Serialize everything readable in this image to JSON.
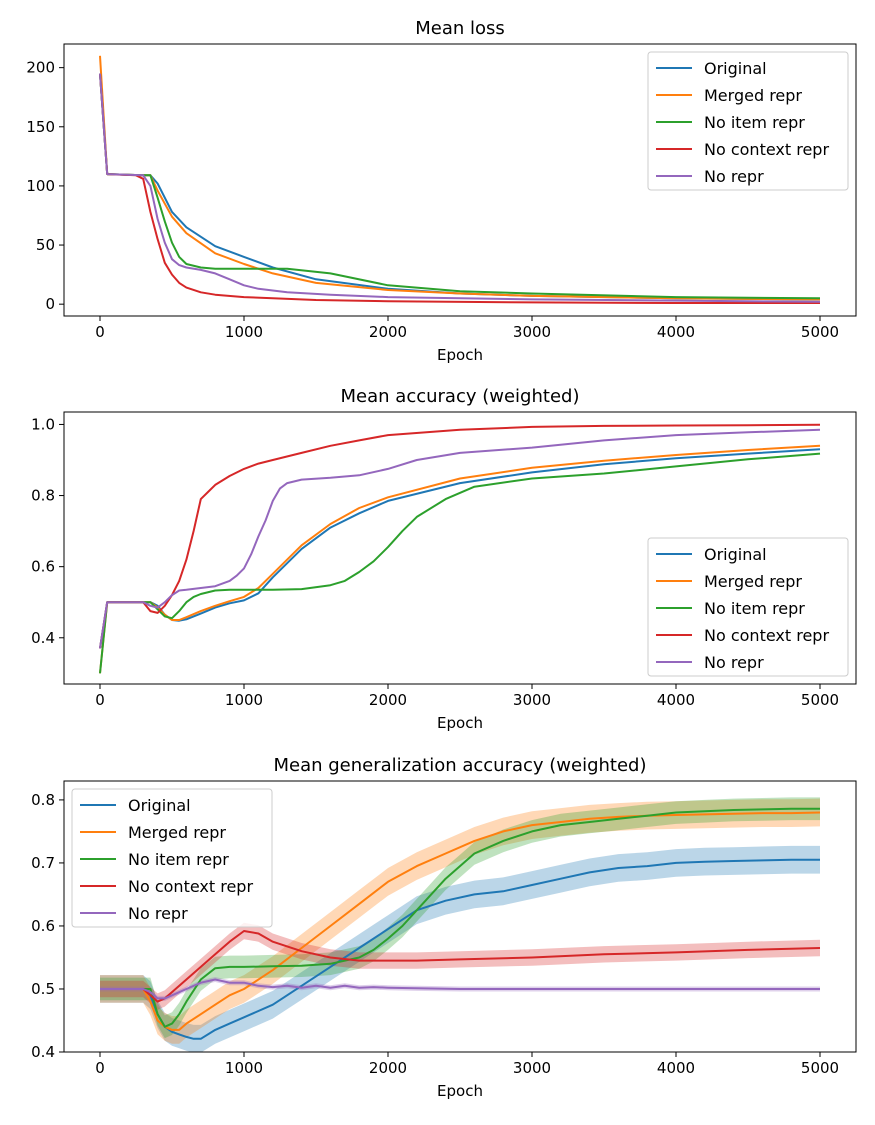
{
  "colors": {
    "Original": "#1f77b4",
    "Merged repr": "#ff7f0e",
    "No item repr": "#2ca02c",
    "No context repr": "#d62728",
    "No repr": "#9467bd"
  },
  "chart_data": [
    {
      "type": "line",
      "title": "Mean loss",
      "xlabel": "Epoch",
      "ylabel": "",
      "xlim": [
        -250,
        5250
      ],
      "ylim": [
        -10,
        220
      ],
      "xticks": [
        0,
        1000,
        2000,
        3000,
        4000,
        5000
      ],
      "yticks": [
        0,
        50,
        100,
        150,
        200
      ],
      "legend": "top-right",
      "grid": false,
      "series": [
        {
          "name": "Original",
          "x": [
            0,
            50,
            300,
            350,
            400,
            500,
            600,
            800,
            1000,
            1200,
            1500,
            2000,
            2500,
            3000,
            4000,
            5000
          ],
          "y": [
            195,
            110,
            109,
            109,
            102,
            78,
            65,
            49,
            40,
            31,
            21,
            13,
            9,
            7,
            5,
            4
          ]
        },
        {
          "name": "Merged repr",
          "x": [
            0,
            50,
            300,
            350,
            400,
            500,
            600,
            800,
            1000,
            1200,
            1500,
            2000,
            2500,
            3000,
            4000,
            5000
          ],
          "y": [
            210,
            110,
            109,
            109,
            96,
            74,
            60,
            43,
            34,
            26,
            18,
            12,
            9,
            7,
            5,
            4
          ]
        },
        {
          "name": "No item repr",
          "x": [
            0,
            50,
            300,
            350,
            400,
            450,
            500,
            550,
            600,
            700,
            800,
            1000,
            1300,
            1600,
            2000,
            2500,
            3000,
            4000,
            5000
          ],
          "y": [
            195,
            110,
            109,
            109,
            90,
            70,
            52,
            40,
            34,
            31,
            30,
            30,
            30,
            26,
            16,
            11,
            9,
            6,
            5
          ]
        },
        {
          "name": "No context repr",
          "x": [
            0,
            50,
            250,
            300,
            350,
            400,
            450,
            500,
            550,
            600,
            700,
            800,
            1000,
            1200,
            1500,
            2000,
            3000,
            4000,
            5000
          ],
          "y": [
            195,
            110,
            109,
            106,
            78,
            55,
            35,
            25,
            18,
            14,
            10,
            8,
            6,
            5,
            3.5,
            2.5,
            1.5,
            1,
            1
          ]
        },
        {
          "name": "No repr",
          "x": [
            0,
            50,
            300,
            350,
            400,
            450,
            500,
            550,
            600,
            700,
            800,
            900,
            1000,
            1100,
            1300,
            1600,
            2000,
            3000,
            4000,
            5000
          ],
          "y": [
            195,
            110,
            109,
            100,
            72,
            52,
            38,
            33,
            31,
            29,
            26,
            21,
            16,
            13,
            10,
            8,
            6,
            4,
            3,
            2
          ]
        }
      ]
    },
    {
      "type": "line",
      "title": "Mean accuracy (weighted)",
      "xlabel": "Epoch",
      "ylabel": "",
      "xlim": [
        -250,
        5250
      ],
      "ylim": [
        0.27,
        1.035
      ],
      "xticks": [
        0,
        1000,
        2000,
        3000,
        4000,
        5000
      ],
      "yticks": [
        0.4,
        0.6,
        0.8,
        1.0
      ],
      "ytick_labels": [
        "0.4",
        "0.6",
        "0.8",
        "1.0"
      ],
      "legend": "bottom-right",
      "grid": false,
      "series": [
        {
          "name": "Original",
          "x": [
            0,
            50,
            300,
            350,
            400,
            450,
            500,
            550,
            600,
            700,
            800,
            900,
            1000,
            1100,
            1200,
            1400,
            1600,
            1800,
            2000,
            2500,
            3000,
            3500,
            4000,
            4500,
            5000
          ],
          "y": [
            0.37,
            0.5,
            0.5,
            0.5,
            0.49,
            0.465,
            0.45,
            0.448,
            0.452,
            0.468,
            0.485,
            0.497,
            0.505,
            0.525,
            0.57,
            0.65,
            0.71,
            0.75,
            0.785,
            0.835,
            0.865,
            0.888,
            0.905,
            0.918,
            0.93
          ]
        },
        {
          "name": "Merged repr",
          "x": [
            0,
            50,
            300,
            350,
            400,
            450,
            500,
            550,
            600,
            700,
            800,
            900,
            1000,
            1100,
            1200,
            1400,
            1600,
            1800,
            2000,
            2500,
            3000,
            3500,
            4000,
            4500,
            5000
          ],
          "y": [
            0.3,
            0.5,
            0.5,
            0.5,
            0.485,
            0.465,
            0.45,
            0.45,
            0.458,
            0.475,
            0.49,
            0.503,
            0.515,
            0.54,
            0.58,
            0.66,
            0.72,
            0.765,
            0.795,
            0.848,
            0.878,
            0.898,
            0.914,
            0.928,
            0.94
          ]
        },
        {
          "name": "No item repr",
          "x": [
            0,
            50,
            300,
            350,
            400,
            450,
            500,
            550,
            600,
            650,
            700,
            800,
            900,
            1000,
            1200,
            1400,
            1600,
            1700,
            1800,
            1900,
            2000,
            2100,
            2200,
            2400,
            2600,
            3000,
            3500,
            4000,
            4500,
            5000
          ],
          "y": [
            0.3,
            0.5,
            0.5,
            0.5,
            0.48,
            0.46,
            0.455,
            0.475,
            0.5,
            0.515,
            0.523,
            0.533,
            0.535,
            0.535,
            0.535,
            0.537,
            0.548,
            0.56,
            0.585,
            0.615,
            0.655,
            0.7,
            0.74,
            0.79,
            0.825,
            0.848,
            0.862,
            0.882,
            0.902,
            0.918
          ]
        },
        {
          "name": "No context repr",
          "x": [
            0,
            50,
            300,
            350,
            400,
            450,
            500,
            550,
            600,
            650,
            700,
            750,
            800,
            900,
            1000,
            1100,
            1200,
            1400,
            1600,
            1800,
            2000,
            2500,
            3000,
            3500,
            4000,
            4500,
            5000
          ],
          "y": [
            0.37,
            0.5,
            0.5,
            0.475,
            0.47,
            0.49,
            0.52,
            0.56,
            0.62,
            0.7,
            0.79,
            0.81,
            0.83,
            0.855,
            0.875,
            0.89,
            0.9,
            0.92,
            0.94,
            0.955,
            0.97,
            0.985,
            0.993,
            0.996,
            0.997,
            0.998,
            0.999
          ]
        },
        {
          "name": "No repr",
          "x": [
            0,
            50,
            300,
            350,
            400,
            450,
            500,
            550,
            600,
            700,
            800,
            900,
            950,
            1000,
            1050,
            1100,
            1150,
            1200,
            1250,
            1300,
            1400,
            1600,
            1800,
            2000,
            2200,
            2500,
            3000,
            3500,
            4000,
            4500,
            5000
          ],
          "y": [
            0.37,
            0.5,
            0.5,
            0.49,
            0.485,
            0.5,
            0.52,
            0.533,
            0.535,
            0.54,
            0.545,
            0.56,
            0.575,
            0.595,
            0.635,
            0.685,
            0.73,
            0.785,
            0.82,
            0.835,
            0.845,
            0.85,
            0.857,
            0.875,
            0.9,
            0.92,
            0.935,
            0.955,
            0.97,
            0.978,
            0.985
          ]
        }
      ]
    },
    {
      "type": "line",
      "title": "Mean generalization accuracy (weighted)",
      "xlabel": "Epoch",
      "ylabel": "",
      "xlim": [
        -250,
        5250
      ],
      "ylim": [
        0.4,
        0.83
      ],
      "xticks": [
        0,
        1000,
        2000,
        3000,
        4000,
        5000
      ],
      "yticks": [
        0.4,
        0.5,
        0.6,
        0.7,
        0.8
      ],
      "ytick_labels": [
        "0.4",
        "0.5",
        "0.6",
        "0.7",
        "0.8"
      ],
      "legend": "top-left",
      "grid": false,
      "series": [
        {
          "name": "Original",
          "x": [
            0,
            50,
            300,
            350,
            400,
            450,
            500,
            550,
            600,
            650,
            700,
            800,
            900,
            1000,
            1200,
            1400,
            1600,
            1800,
            2000,
            2200,
            2400,
            2600,
            2800,
            3000,
            3200,
            3400,
            3600,
            3800,
            4000,
            4200,
            4400,
            4600,
            4800,
            5000
          ],
          "y": [
            0.5,
            0.5,
            0.5,
            0.49,
            0.46,
            0.44,
            0.432,
            0.428,
            0.424,
            0.421,
            0.421,
            0.435,
            0.445,
            0.455,
            0.475,
            0.505,
            0.535,
            0.565,
            0.595,
            0.625,
            0.64,
            0.65,
            0.655,
            0.665,
            0.675,
            0.685,
            0.692,
            0.695,
            0.7,
            0.702,
            0.703,
            0.704,
            0.705,
            0.705
          ],
          "band": 0.022
        },
        {
          "name": "Merged repr",
          "x": [
            0,
            50,
            300,
            350,
            400,
            450,
            500,
            550,
            600,
            700,
            800,
            900,
            1000,
            1200,
            1400,
            1600,
            1800,
            2000,
            2200,
            2400,
            2600,
            2800,
            3000,
            3200,
            3400,
            3600,
            3800,
            4000,
            4200,
            4400,
            4600,
            4800,
            5000
          ],
          "y": [
            0.5,
            0.5,
            0.5,
            0.48,
            0.45,
            0.44,
            0.435,
            0.435,
            0.445,
            0.46,
            0.475,
            0.49,
            0.5,
            0.53,
            0.565,
            0.6,
            0.635,
            0.67,
            0.695,
            0.715,
            0.735,
            0.75,
            0.76,
            0.765,
            0.77,
            0.773,
            0.775,
            0.776,
            0.777,
            0.778,
            0.779,
            0.779,
            0.78
          ],
          "band": 0.022
        },
        {
          "name": "No item repr",
          "x": [
            0,
            50,
            300,
            350,
            400,
            450,
            500,
            550,
            600,
            700,
            800,
            900,
            1000,
            1200,
            1400,
            1600,
            1800,
            1900,
            2000,
            2100,
            2200,
            2300,
            2400,
            2500,
            2600,
            2800,
            3000,
            3200,
            3400,
            3600,
            3800,
            4000,
            4200,
            4400,
            4600,
            4800,
            5000
          ],
          "y": [
            0.5,
            0.5,
            0.5,
            0.5,
            0.46,
            0.44,
            0.445,
            0.46,
            0.48,
            0.515,
            0.533,
            0.535,
            0.535,
            0.536,
            0.537,
            0.54,
            0.55,
            0.562,
            0.58,
            0.6,
            0.625,
            0.65,
            0.675,
            0.695,
            0.715,
            0.735,
            0.75,
            0.76,
            0.765,
            0.77,
            0.775,
            0.78,
            0.782,
            0.784,
            0.785,
            0.786,
            0.786
          ],
          "band": 0.018
        },
        {
          "name": "No context repr",
          "x": [
            0,
            50,
            300,
            350,
            400,
            450,
            500,
            600,
            700,
            800,
            900,
            1000,
            1100,
            1200,
            1400,
            1600,
            1800,
            2000,
            2200,
            2500,
            3000,
            3500,
            4000,
            4500,
            5000
          ],
          "y": [
            0.5,
            0.5,
            0.5,
            0.49,
            0.48,
            0.485,
            0.495,
            0.515,
            0.535,
            0.555,
            0.575,
            0.592,
            0.588,
            0.575,
            0.56,
            0.55,
            0.545,
            0.545,
            0.545,
            0.547,
            0.55,
            0.555,
            0.558,
            0.562,
            0.565
          ],
          "band": 0.013
        },
        {
          "name": "No repr",
          "x": [
            0,
            50,
            300,
            350,
            400,
            450,
            500,
            600,
            700,
            800,
            900,
            1000,
            1100,
            1200,
            1300,
            1400,
            1500,
            1600,
            1700,
            1800,
            1900,
            2000,
            2200,
            2500,
            3000,
            4000,
            5000
          ],
          "y": [
            0.5,
            0.5,
            0.5,
            0.495,
            0.485,
            0.485,
            0.49,
            0.5,
            0.51,
            0.515,
            0.51,
            0.51,
            0.505,
            0.503,
            0.505,
            0.502,
            0.505,
            0.502,
            0.505,
            0.502,
            0.503,
            0.502,
            0.501,
            0.5,
            0.5,
            0.5,
            0.5
          ],
          "band": 0.004
        }
      ]
    }
  ]
}
